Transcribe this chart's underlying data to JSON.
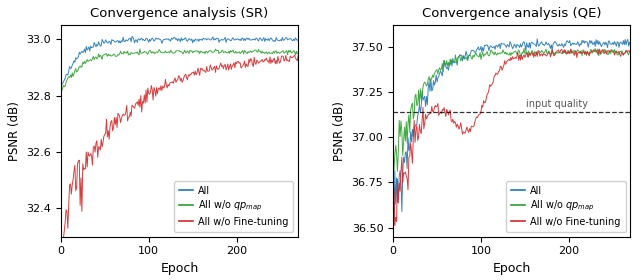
{
  "title_sr": "Convergence analysis (SR)",
  "title_qe": "Convergence analysis (QE)",
  "xlabel": "Epoch",
  "ylabel": "PSNR (dB)",
  "sr_ylim": [
    32.3,
    33.05
  ],
  "qe_ylim": [
    36.45,
    37.62
  ],
  "sr_yticks": [
    32.4,
    32.6,
    32.8,
    33.0
  ],
  "qe_yticks": [
    36.5,
    36.75,
    37.0,
    37.25,
    37.5
  ],
  "xticks": [
    0,
    100,
    200
  ],
  "max_epoch": 270,
  "colors": {
    "all": "#1f77b4",
    "wo_qpmap": "#2ca02c",
    "wo_finetuning": "#d62728"
  },
  "legend_labels": [
    "All",
    "All w/o $qp_{map}$",
    "All w/o Fine-tuning"
  ],
  "qe_dashed_line": 37.14,
  "qe_dashed_label": "input quality"
}
